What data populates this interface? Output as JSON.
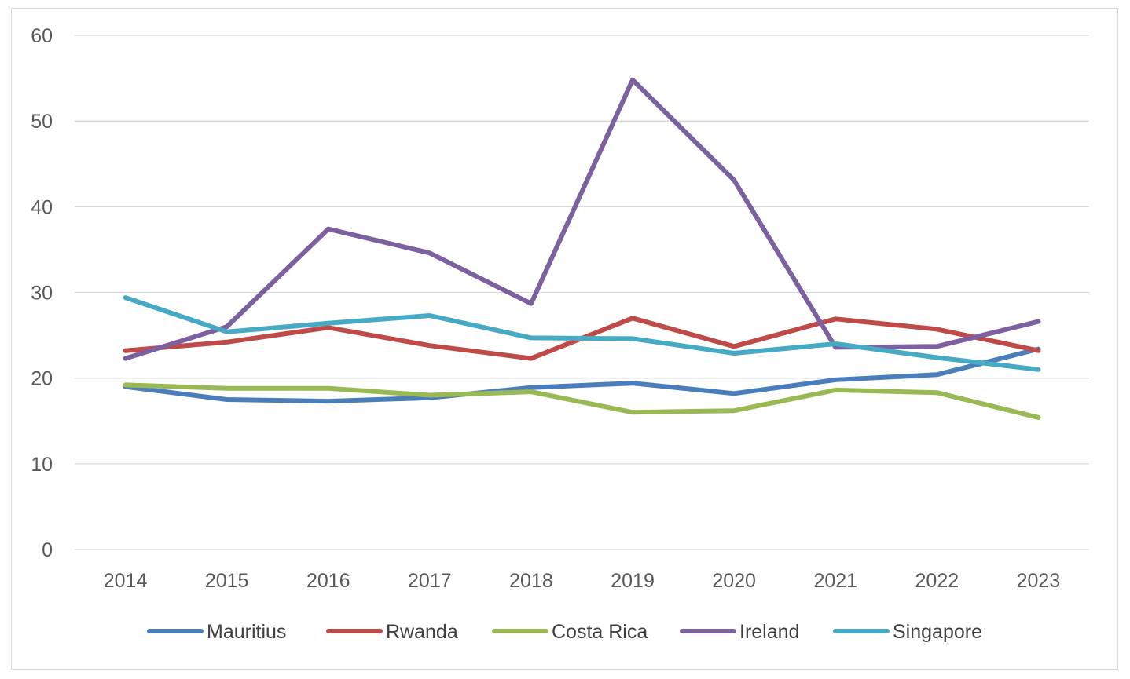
{
  "chart_data": {
    "type": "line",
    "x": [
      "2014",
      "2015",
      "2016",
      "2017",
      "2018",
      "2019",
      "2020",
      "2021",
      "2022",
      "2023"
    ],
    "ylim": [
      0,
      60
    ],
    "yticks": [
      0,
      10,
      20,
      30,
      40,
      50,
      60
    ],
    "grid": true,
    "legend_position": "bottom",
    "series": [
      {
        "name": "Mauritius",
        "color": "#4a7ebb",
        "values": [
          19.0,
          17.5,
          17.3,
          17.7,
          18.9,
          19.4,
          18.2,
          19.8,
          20.4,
          23.4
        ]
      },
      {
        "name": "Rwanda",
        "color": "#be4b48",
        "values": [
          23.2,
          24.2,
          25.9,
          23.8,
          22.3,
          27.0,
          23.7,
          26.9,
          25.7,
          23.2
        ]
      },
      {
        "name": "Costa Rica",
        "color": "#98b954",
        "values": [
          19.2,
          18.8,
          18.8,
          18.0,
          18.4,
          16.0,
          16.2,
          18.6,
          18.3,
          15.4
        ]
      },
      {
        "name": "Ireland",
        "color": "#7d60a0",
        "values": [
          22.3,
          26.0,
          37.4,
          34.6,
          28.7,
          54.8,
          43.1,
          23.6,
          23.7,
          26.6
        ]
      },
      {
        "name": "Singapore",
        "color": "#46aac5",
        "values": [
          29.4,
          25.4,
          26.4,
          27.3,
          24.7,
          24.6,
          22.9,
          24.0,
          22.4,
          21.0
        ]
      }
    ]
  }
}
